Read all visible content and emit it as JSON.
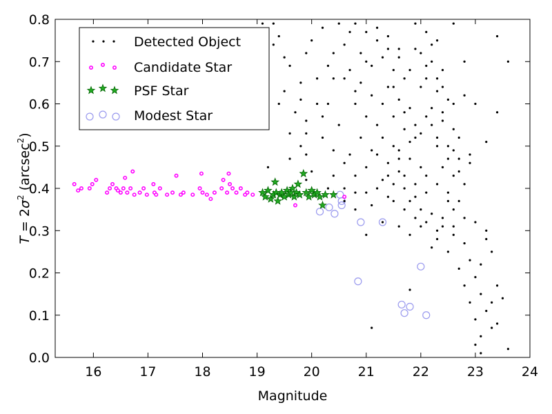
{
  "chart_data": {
    "type": "scatter",
    "xlabel": "Magnitude",
    "ylabel_parts": {
      "prefix": "T",
      "equals": " = 2",
      "sigma": "σ",
      "sup2": "2",
      "unit": " (arcsec",
      "unit_sup": "2",
      "close": ")"
    },
    "xlim": [
      15.3,
      24.0
    ],
    "ylim": [
      0.0,
      0.8
    ],
    "x_ticks": [
      16,
      17,
      18,
      19,
      20,
      21,
      22,
      23,
      24
    ],
    "y_ticks": [
      0.0,
      0.1,
      0.2,
      0.3,
      0.4,
      0.5,
      0.6,
      0.7,
      0.8
    ],
    "y_tick_labels": [
      "0.0",
      "0.1",
      "0.2",
      "0.3",
      "0.4",
      "0.5",
      "0.6",
      "0.7",
      "0.8"
    ],
    "grid": false,
    "legend_position": "upper-left",
    "colors": {
      "detected": "#000000",
      "candidate": "#ff00ff",
      "psf_fill": "#22aa22",
      "psf_edge": "#006400",
      "modest": "#9999ee"
    },
    "series": [
      {
        "name": "Detected Object",
        "marker": "dot",
        "points": [
          [
            19.1,
            0.79
          ],
          [
            19.2,
            0.77
          ],
          [
            19.3,
            0.74
          ],
          [
            19.5,
            0.71
          ],
          [
            19.6,
            0.69
          ],
          [
            19.9,
            0.72
          ],
          [
            20.1,
            0.66
          ],
          [
            19.8,
            0.65
          ],
          [
            19.5,
            0.63
          ],
          [
            19.4,
            0.6
          ],
          [
            19.7,
            0.58
          ],
          [
            19.9,
            0.56
          ],
          [
            20.3,
            0.6
          ],
          [
            20.5,
            0.55
          ],
          [
            19.6,
            0.53
          ],
          [
            19.2,
            0.45
          ],
          [
            19.6,
            0.47
          ],
          [
            19.9,
            0.48
          ],
          [
            20.2,
            0.52
          ],
          [
            20.4,
            0.49
          ],
          [
            20.6,
            0.46
          ],
          [
            20.8,
            0.43
          ],
          [
            19.9,
            0.42
          ],
          [
            20.4,
            0.43
          ],
          [
            20.6,
            0.4
          ],
          [
            20.8,
            0.39
          ],
          [
            21.0,
            0.39
          ],
          [
            21.2,
            0.4
          ],
          [
            21.4,
            0.38
          ],
          [
            21.1,
            0.36
          ],
          [
            20.5,
            0.79
          ],
          [
            20.6,
            0.74
          ],
          [
            20.7,
            0.77
          ],
          [
            20.9,
            0.72
          ],
          [
            21.0,
            0.7
          ],
          [
            20.7,
            0.68
          ],
          [
            20.9,
            0.65
          ],
          [
            21.1,
            0.62
          ],
          [
            20.8,
            0.6
          ],
          [
            21.0,
            0.57
          ],
          [
            21.2,
            0.55
          ],
          [
            21.3,
            0.52
          ],
          [
            21.5,
            0.5
          ],
          [
            21.2,
            0.48
          ],
          [
            21.4,
            0.46
          ],
          [
            21.6,
            0.44
          ],
          [
            21.3,
            0.42
          ],
          [
            21.5,
            0.41
          ],
          [
            21.7,
            0.4
          ],
          [
            21.9,
            0.38
          ],
          [
            21.2,
            0.78
          ],
          [
            21.4,
            0.76
          ],
          [
            21.6,
            0.73
          ],
          [
            21.3,
            0.71
          ],
          [
            21.5,
            0.68
          ],
          [
            21.7,
            0.66
          ],
          [
            21.4,
            0.64
          ],
          [
            21.6,
            0.61
          ],
          [
            21.8,
            0.59
          ],
          [
            21.5,
            0.57
          ],
          [
            21.7,
            0.54
          ],
          [
            21.9,
            0.52
          ],
          [
            21.6,
            0.49
          ],
          [
            21.8,
            0.47
          ],
          [
            22.0,
            0.45
          ],
          [
            21.7,
            0.43
          ],
          [
            21.9,
            0.41
          ],
          [
            22.1,
            0.39
          ],
          [
            21.8,
            0.37
          ],
          [
            22.0,
            0.35
          ],
          [
            21.9,
            0.79
          ],
          [
            22.1,
            0.77
          ],
          [
            22.3,
            0.75
          ],
          [
            22.0,
            0.72
          ],
          [
            22.2,
            0.7
          ],
          [
            22.4,
            0.68
          ],
          [
            22.1,
            0.66
          ],
          [
            22.3,
            0.63
          ],
          [
            22.5,
            0.61
          ],
          [
            22.2,
            0.59
          ],
          [
            22.4,
            0.56
          ],
          [
            22.6,
            0.54
          ],
          [
            22.3,
            0.52
          ],
          [
            22.5,
            0.5
          ],
          [
            22.7,
            0.47
          ],
          [
            22.4,
            0.45
          ],
          [
            22.6,
            0.43
          ],
          [
            22.8,
            0.41
          ],
          [
            22.5,
            0.39
          ],
          [
            22.7,
            0.37
          ],
          [
            22.6,
            0.35
          ],
          [
            22.8,
            0.33
          ],
          [
            22.4,
            0.31
          ],
          [
            22.6,
            0.29
          ],
          [
            22.8,
            0.27
          ],
          [
            22.5,
            0.25
          ],
          [
            22.9,
            0.23
          ],
          [
            22.7,
            0.21
          ],
          [
            23.0,
            0.19
          ],
          [
            22.8,
            0.17
          ],
          [
            23.1,
            0.15
          ],
          [
            22.9,
            0.13
          ],
          [
            23.2,
            0.11
          ],
          [
            23.0,
            0.09
          ],
          [
            23.3,
            0.07
          ],
          [
            23.1,
            0.05
          ],
          [
            23.0,
            0.03
          ],
          [
            23.1,
            0.01
          ],
          [
            23.6,
            0.02
          ],
          [
            23.4,
            0.08
          ],
          [
            23.2,
            0.28
          ],
          [
            23.3,
            0.25
          ],
          [
            23.1,
            0.22
          ],
          [
            23.4,
            0.17
          ],
          [
            23.3,
            0.13
          ],
          [
            23.5,
            0.14
          ],
          [
            23.2,
            0.3
          ],
          [
            23.0,
            0.32
          ],
          [
            23.4,
            0.58
          ],
          [
            23.6,
            0.7
          ],
          [
            23.4,
            0.76
          ],
          [
            22.7,
            0.44
          ],
          [
            22.9,
            0.46
          ],
          [
            22.6,
            0.49
          ],
          [
            22.4,
            0.64
          ],
          [
            22.2,
            0.74
          ],
          [
            21.1,
            0.07
          ],
          [
            21.8,
            0.16
          ],
          [
            22.3,
            0.28
          ],
          [
            21.6,
            0.31
          ],
          [
            21.3,
            0.32
          ],
          [
            21.0,
            0.29
          ],
          [
            20.8,
            0.35
          ],
          [
            20.6,
            0.37
          ],
          [
            20.3,
            0.4
          ],
          [
            19.9,
            0.53
          ],
          [
            19.8,
            0.5
          ],
          [
            20.0,
            0.44
          ],
          [
            20.1,
            0.6
          ],
          [
            20.3,
            0.69
          ],
          [
            20.4,
            0.72
          ],
          [
            20.6,
            0.66
          ],
          [
            20.8,
            0.63
          ],
          [
            21.1,
            0.69
          ],
          [
            21.3,
            0.6
          ],
          [
            21.5,
            0.64
          ],
          [
            21.7,
            0.58
          ],
          [
            21.9,
            0.55
          ],
          [
            22.1,
            0.57
          ],
          [
            22.3,
            0.5
          ],
          [
            22.5,
            0.47
          ],
          [
            22.1,
            0.43
          ],
          [
            22.3,
            0.41
          ],
          [
            22.5,
            0.37
          ],
          [
            22.2,
            0.34
          ],
          [
            22.4,
            0.33
          ],
          [
            22.0,
            0.31
          ],
          [
            21.8,
            0.29
          ],
          [
            22.6,
            0.31
          ],
          [
            22.2,
            0.26
          ],
          [
            20.0,
            0.75
          ],
          [
            20.2,
            0.78
          ],
          [
            20.4,
            0.66
          ],
          [
            19.8,
            0.61
          ],
          [
            20.2,
            0.57
          ],
          [
            20.9,
            0.52
          ],
          [
            21.1,
            0.49
          ],
          [
            20.7,
            0.48
          ],
          [
            21.0,
            0.45
          ],
          [
            21.4,
            0.43
          ],
          [
            21.6,
            0.47
          ],
          [
            21.8,
            0.51
          ],
          [
            22.0,
            0.53
          ],
          [
            22.2,
            0.55
          ],
          [
            22.4,
            0.58
          ],
          [
            22.6,
            0.6
          ],
          [
            22.8,
            0.62
          ],
          [
            22.0,
            0.64
          ],
          [
            21.8,
            0.68
          ],
          [
            21.6,
            0.71
          ],
          [
            21.4,
            0.73
          ],
          [
            21.2,
            0.75
          ],
          [
            21.0,
            0.77
          ],
          [
            20.8,
            0.79
          ],
          [
            22.6,
            0.79
          ],
          [
            22.8,
            0.7
          ],
          [
            23.0,
            0.6
          ],
          [
            23.2,
            0.51
          ],
          [
            22.9,
            0.48
          ],
          [
            22.7,
            0.52
          ],
          [
            19.3,
            0.79
          ],
          [
            19.4,
            0.76
          ],
          [
            21.9,
            0.73
          ],
          [
            22.1,
            0.69
          ],
          [
            22.3,
            0.66
          ],
          [
            21.5,
            0.37
          ],
          [
            21.7,
            0.35
          ],
          [
            21.9,
            0.33
          ],
          [
            22.1,
            0.32
          ],
          [
            22.3,
            0.3
          ]
        ]
      },
      {
        "name": "Candidate Star",
        "marker": "small-circle",
        "points": [
          [
            15.65,
            0.41
          ],
          [
            15.72,
            0.395
          ],
          [
            15.78,
            0.4
          ],
          [
            15.93,
            0.4
          ],
          [
            15.98,
            0.41
          ],
          [
            16.05,
            0.42
          ],
          [
            16.25,
            0.39
          ],
          [
            16.3,
            0.4
          ],
          [
            16.35,
            0.41
          ],
          [
            16.42,
            0.4
          ],
          [
            16.45,
            0.395
          ],
          [
            16.5,
            0.39
          ],
          [
            16.55,
            0.4
          ],
          [
            16.58,
            0.425
          ],
          [
            16.62,
            0.39
          ],
          [
            16.68,
            0.4
          ],
          [
            16.72,
            0.44
          ],
          [
            16.75,
            0.385
          ],
          [
            16.85,
            0.39
          ],
          [
            16.92,
            0.4
          ],
          [
            16.98,
            0.385
          ],
          [
            17.1,
            0.41
          ],
          [
            17.12,
            0.39
          ],
          [
            17.15,
            0.385
          ],
          [
            17.22,
            0.4
          ],
          [
            17.35,
            0.385
          ],
          [
            17.45,
            0.39
          ],
          [
            17.52,
            0.43
          ],
          [
            17.6,
            0.385
          ],
          [
            17.65,
            0.39
          ],
          [
            17.82,
            0.385
          ],
          [
            17.95,
            0.4
          ],
          [
            17.98,
            0.435
          ],
          [
            18.0,
            0.39
          ],
          [
            18.08,
            0.385
          ],
          [
            18.15,
            0.375
          ],
          [
            18.22,
            0.39
          ],
          [
            18.35,
            0.4
          ],
          [
            18.38,
            0.42
          ],
          [
            18.45,
            0.39
          ],
          [
            18.5,
            0.41
          ],
          [
            18.55,
            0.4
          ],
          [
            18.62,
            0.39
          ],
          [
            18.7,
            0.4
          ],
          [
            18.78,
            0.385
          ],
          [
            18.82,
            0.39
          ],
          [
            18.92,
            0.385
          ],
          [
            19.7,
            0.36
          ],
          [
            20.6,
            0.38
          ],
          [
            18.48,
            0.435
          ]
        ]
      },
      {
        "name": "PSF Star",
        "marker": "star",
        "points": [
          [
            19.1,
            0.39
          ],
          [
            19.15,
            0.38
          ],
          [
            19.2,
            0.395
          ],
          [
            19.25,
            0.375
          ],
          [
            19.3,
            0.385
          ],
          [
            19.33,
            0.415
          ],
          [
            19.35,
            0.39
          ],
          [
            19.38,
            0.37
          ],
          [
            19.42,
            0.385
          ],
          [
            19.45,
            0.39
          ],
          [
            19.5,
            0.38
          ],
          [
            19.55,
            0.395
          ],
          [
            19.58,
            0.385
          ],
          [
            19.62,
            0.39
          ],
          [
            19.65,
            0.4
          ],
          [
            19.68,
            0.38
          ],
          [
            19.72,
            0.39
          ],
          [
            19.75,
            0.41
          ],
          [
            19.78,
            0.385
          ],
          [
            19.85,
            0.435
          ],
          [
            19.9,
            0.39
          ],
          [
            19.95,
            0.38
          ],
          [
            20.0,
            0.395
          ],
          [
            20.05,
            0.385
          ],
          [
            20.1,
            0.39
          ],
          [
            20.15,
            0.38
          ],
          [
            20.2,
            0.36
          ],
          [
            20.25,
            0.385
          ],
          [
            20.4,
            0.385
          ]
        ]
      },
      {
        "name": "Modest Star",
        "marker": "open-circle",
        "points": [
          [
            20.15,
            0.345
          ],
          [
            20.32,
            0.355
          ],
          [
            20.42,
            0.34
          ],
          [
            20.55,
            0.36
          ],
          [
            20.52,
            0.385
          ],
          [
            20.9,
            0.32
          ],
          [
            21.3,
            0.32
          ],
          [
            20.85,
            0.18
          ],
          [
            21.65,
            0.125
          ],
          [
            21.8,
            0.12
          ],
          [
            21.7,
            0.105
          ],
          [
            22.0,
            0.215
          ],
          [
            22.1,
            0.1
          ],
          [
            20.55,
            0.37
          ]
        ]
      }
    ]
  },
  "legend": {
    "items": [
      {
        "label": "Detected Object",
        "marker": "dot"
      },
      {
        "label": "Candidate Star",
        "marker": "small-circle"
      },
      {
        "label": "PSF Star",
        "marker": "star"
      },
      {
        "label": "Modest Star",
        "marker": "open-circle"
      }
    ]
  }
}
